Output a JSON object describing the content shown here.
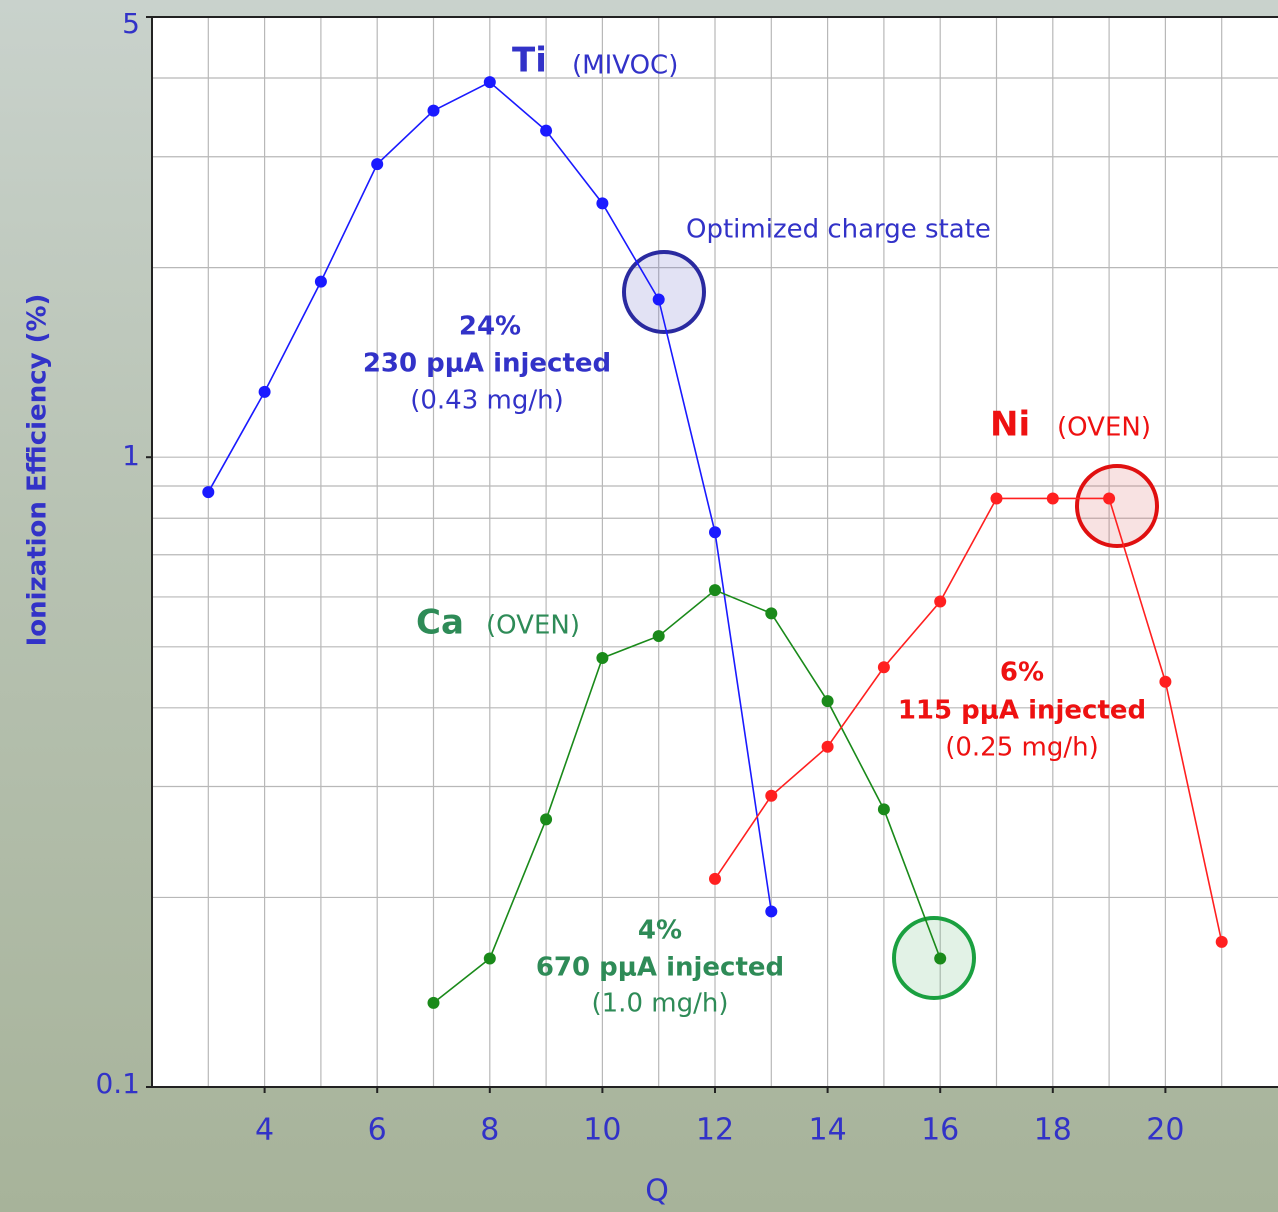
{
  "chart_data": {
    "type": "line",
    "xlabel": "Q",
    "ylabel": "Ionization Efficiency (%)",
    "xlim": [
      2,
      22
    ],
    "xticks": [
      4,
      6,
      8,
      10,
      12,
      14,
      16,
      18,
      20
    ],
    "xgrid": [
      3,
      4,
      5,
      6,
      7,
      8,
      9,
      10,
      11,
      12,
      13,
      14,
      15,
      16,
      17,
      18,
      19,
      20,
      21
    ],
    "ylim": [
      0.1,
      5
    ],
    "yscale": "log",
    "yticks": [
      0.1,
      1,
      5
    ],
    "ygrid": [
      0.2,
      0.3,
      0.4,
      0.5,
      0.6,
      0.7,
      0.8,
      0.9,
      1,
      2,
      3,
      4
    ],
    "grid": true,
    "series": [
      {
        "name": "Ti",
        "note": "(MIVOC)",
        "color": "#1a1aff",
        "label_color": "#3232c8",
        "x": [
          3,
          4,
          5,
          6,
          7,
          8,
          9,
          10,
          11,
          12,
          13
        ],
        "values": [
          0.88,
          1.27,
          1.9,
          2.92,
          3.55,
          3.94,
          3.3,
          2.53,
          1.78,
          0.76,
          0.19
        ]
      },
      {
        "name": "Ca",
        "note": "(OVEN)",
        "color": "#1a8a1a",
        "label_color": "#2e8b57",
        "x": [
          7,
          8,
          9,
          10,
          11,
          12,
          13,
          14,
          15,
          16
        ],
        "values": [
          0.136,
          0.16,
          0.266,
          0.48,
          0.52,
          0.615,
          0.565,
          0.41,
          0.276,
          0.16
        ]
      },
      {
        "name": "Ni",
        "note": "(OVEN)",
        "color": "#ff2020",
        "label_color": "#ee1111",
        "x": [
          12,
          13,
          14,
          15,
          16,
          17,
          18,
          19,
          20,
          21
        ],
        "values": [
          0.214,
          0.29,
          0.347,
          0.464,
          0.59,
          0.86,
          0.86,
          0.86,
          0.44,
          0.17
        ]
      }
    ],
    "annotations": [
      {
        "text": "Optimized charge state",
        "color": "#3232c8"
      },
      {
        "text": "24%",
        "color": "#3232c8"
      },
      {
        "text": "230 pμA injected",
        "color": "#3232c8"
      },
      {
        "text": "(0.43 mg/h)",
        "color": "#3232c8"
      },
      {
        "text": "6%",
        "color": "#ee1111"
      },
      {
        "text": "115 pμA injected",
        "color": "#ee1111"
      },
      {
        "text": "(0.25 mg/h)",
        "color": "#ee1111"
      },
      {
        "text": "4%",
        "color": "#2e8b57"
      },
      {
        "text": "670 pμA injected",
        "color": "#2e8b57"
      },
      {
        "text": "(1.0 mg/h)",
        "color": "#2e8b57"
      }
    ]
  }
}
